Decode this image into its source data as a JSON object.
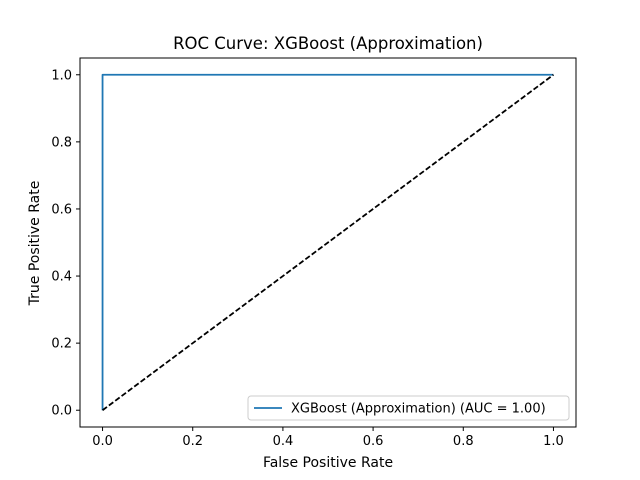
{
  "chart_data": {
    "type": "line",
    "title": "ROC Curve: XGBoost (Approximation)",
    "xlabel": "False Positive Rate",
    "ylabel": "True Positive Rate",
    "xlim": [
      -0.05,
      1.05
    ],
    "ylim": [
      -0.05,
      1.05
    ],
    "xticks": [
      0.0,
      0.2,
      0.4,
      0.6,
      0.8,
      1.0
    ],
    "yticks": [
      0.0,
      0.2,
      0.4,
      0.6,
      0.8,
      1.0
    ],
    "xtick_labels": [
      "0.0",
      "0.2",
      "0.4",
      "0.6",
      "0.8",
      "1.0"
    ],
    "ytick_labels": [
      "0.0",
      "0.2",
      "0.4",
      "0.6",
      "0.8",
      "1.0"
    ],
    "grid": false,
    "legend_position": "lower-right",
    "series": [
      {
        "name": "XGBoost (Approximation) (AUC = 1.00)",
        "color": "#1f77b4",
        "style": "solid",
        "x": [
          0.0,
          0.0,
          1.0
        ],
        "y": [
          0.0,
          1.0,
          1.0
        ]
      },
      {
        "color": "#000000",
        "style": "dashed",
        "x": [
          0.0,
          1.0
        ],
        "y": [
          0.0,
          1.0
        ]
      }
    ]
  }
}
